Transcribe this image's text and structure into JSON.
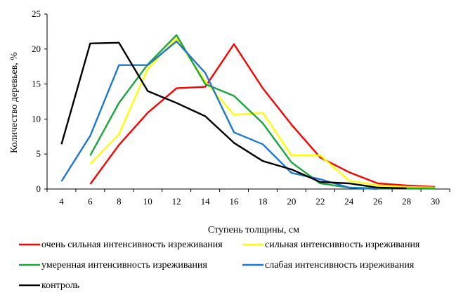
{
  "chart_data": {
    "type": "line",
    "xlabel": "Ступень толщины, см",
    "ylabel": "Количество деревьев, %",
    "xlim": [
      4,
      30
    ],
    "ylim": [
      0,
      25
    ],
    "x_ticks": [
      4,
      6,
      8,
      10,
      12,
      14,
      16,
      18,
      20,
      22,
      24,
      26,
      28,
      30
    ],
    "y_ticks": [
      0,
      5,
      10,
      15,
      20,
      25
    ],
    "grid": false,
    "legend_position": "bottom",
    "series": [
      {
        "name": "очень сильная интенсивность изреживания",
        "color": "#ff0000",
        "x": [
          6,
          8,
          10,
          12,
          14,
          16,
          18,
          20,
          22,
          24,
          26,
          28,
          30
        ],
        "y": [
          0.7,
          6.3,
          10.9,
          14.4,
          14.6,
          20.7,
          14.4,
          9.2,
          4.5,
          2.4,
          0.8,
          0.5,
          0.3
        ]
      },
      {
        "name": "сильная интенсивность изреживания",
        "color": "#ffff00",
        "x": [
          6,
          8,
          10,
          12,
          14,
          16,
          18,
          20,
          22,
          24,
          26,
          28,
          30
        ],
        "y": [
          3.6,
          7.8,
          17.2,
          21.5,
          15.4,
          10.6,
          10.9,
          4.8,
          4.8,
          1.2,
          0.5,
          0.3,
          0.2
        ]
      },
      {
        "name": "умеренная интенсивность изреживания",
        "color": "#1aa63d",
        "x": [
          6,
          8,
          10,
          12,
          14,
          16,
          18,
          20,
          22,
          24,
          26,
          28,
          30
        ],
        "y": [
          4.8,
          12.3,
          17.8,
          22.0,
          15.0,
          13.3,
          9.4,
          3.8,
          0.8,
          0.2,
          0.1,
          0.1,
          0.1
        ]
      },
      {
        "name": "слабая интенсивность изреживания",
        "color": "#1f77d0",
        "x": [
          4,
          6,
          8,
          10,
          12,
          14,
          16,
          18,
          20,
          22,
          24,
          26
        ],
        "y": [
          1.1,
          7.6,
          17.7,
          17.7,
          21.1,
          16.6,
          8.1,
          6.4,
          2.3,
          1.4,
          0.2,
          0.0
        ]
      },
      {
        "name": "контроль",
        "color": "#000000",
        "x": [
          4,
          6,
          8,
          10,
          12,
          14,
          16,
          18,
          20,
          22,
          24,
          26,
          28
        ],
        "y": [
          6.4,
          20.8,
          20.9,
          14.0,
          12.3,
          10.4,
          6.6,
          4.0,
          2.8,
          1.0,
          0.8,
          0.2,
          0.1
        ]
      }
    ]
  }
}
